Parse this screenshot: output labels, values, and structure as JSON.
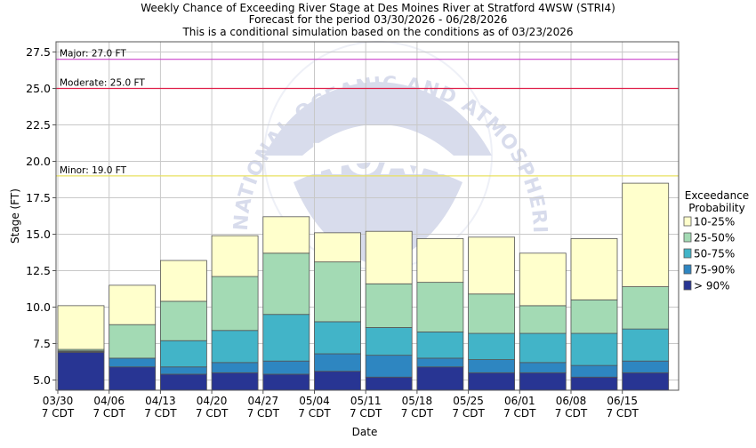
{
  "chart_data": {
    "type": "bar",
    "title_lines": [
      "Weekly Chance of Exceeding River Stage at Des Moines River at Stratford 4WSW (STRI4)",
      "Forecast for the period 03/30/2026 - 06/28/2026",
      "This is a conditional simulation based on the conditions as of 03/23/2026"
    ],
    "xlabel": "Date",
    "ylabel": "Stage (FT)",
    "ylim": [
      4.3,
      28.2
    ],
    "yticks": [
      "5.0",
      "7.5",
      "10.0",
      "12.5",
      "15.0",
      "17.5",
      "20.0",
      "22.5",
      "25.0",
      "27.5"
    ],
    "ytick_values": [
      5.0,
      7.5,
      10.0,
      12.5,
      15.0,
      17.5,
      20.0,
      22.5,
      25.0,
      27.5
    ],
    "grid": true,
    "categories": [
      "03/30",
      "04/06",
      "04/13",
      "04/20",
      "04/27",
      "05/04",
      "05/11",
      "05/18",
      "05/25",
      "06/01",
      "06/08",
      "06/15"
    ],
    "tick_sublabel": "7 CDT",
    "series": [
      {
        "name": "> 90%",
        "color": "#283593",
        "lower": [
          4.3,
          4.3,
          4.3,
          4.3,
          4.3,
          4.3,
          4.3,
          4.3,
          4.3,
          4.3,
          4.3,
          4.3
        ],
        "upper": [
          6.9,
          5.9,
          5.4,
          5.5,
          5.4,
          5.6,
          5.2,
          5.9,
          5.5,
          5.5,
          5.2,
          5.5
        ]
      },
      {
        "name": "75-90%",
        "color": "#2e86c1",
        "lower": [
          6.9,
          5.9,
          5.4,
          5.5,
          5.4,
          5.6,
          5.2,
          5.9,
          5.5,
          5.5,
          5.2,
          5.5
        ],
        "upper": [
          6.95,
          6.5,
          5.9,
          6.2,
          6.3,
          6.8,
          6.7,
          6.5,
          6.4,
          6.2,
          6.0,
          6.3
        ]
      },
      {
        "name": "50-75%",
        "color": "#42b4c8",
        "lower": [
          6.95,
          6.5,
          5.9,
          6.2,
          6.3,
          6.8,
          6.7,
          6.5,
          6.4,
          6.2,
          6.0,
          6.3
        ],
        "upper": [
          7.0,
          6.5,
          7.7,
          8.4,
          9.5,
          9.0,
          8.6,
          8.3,
          8.2,
          8.2,
          8.2,
          8.5
        ]
      },
      {
        "name": "25-50%",
        "color": "#a3dab4",
        "lower": [
          7.0,
          6.5,
          7.7,
          8.4,
          9.5,
          9.0,
          8.6,
          8.3,
          8.2,
          8.2,
          8.2,
          8.5
        ],
        "upper": [
          7.1,
          8.8,
          10.4,
          12.1,
          13.7,
          13.1,
          11.6,
          11.7,
          10.9,
          10.1,
          10.5,
          11.4
        ]
      },
      {
        "name": "10-25%",
        "color": "#ffffcc",
        "lower": [
          7.1,
          8.8,
          10.4,
          12.1,
          13.7,
          13.1,
          11.6,
          11.7,
          10.9,
          10.1,
          10.5,
          11.4
        ],
        "upper": [
          10.1,
          11.5,
          13.2,
          14.9,
          16.2,
          15.1,
          15.2,
          14.7,
          14.8,
          13.7,
          14.7,
          18.5
        ]
      }
    ],
    "legend": {
      "title_lines": [
        "Exceedance",
        "Probability"
      ],
      "entries": [
        "10-25%",
        "25-50%",
        "50-75%",
        "75-90%",
        "> 90%"
      ],
      "placement": "right"
    },
    "thresholds": [
      {
        "label": "Major: 27.0 FT",
        "value": 27.0,
        "color": "#cc44cc"
      },
      {
        "label": "Moderate: 25.0 FT",
        "value": 25.0,
        "color": "#e0204a"
      },
      {
        "label": "Minor: 19.0 FT",
        "value": 19.0,
        "color": "#e8e060"
      }
    ],
    "watermark": {
      "text": "NATIONAL OCEANIC AND ATMOSPHERIC ADMINISTRATION",
      "logo": "NOAA",
      "color": "#d8dcec"
    }
  }
}
